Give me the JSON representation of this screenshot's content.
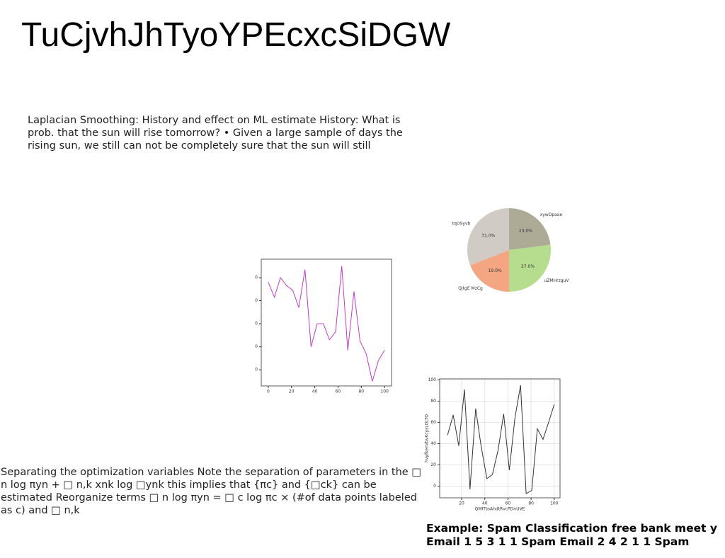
{
  "title": "TuCjvhJhTyoYPEcxcSiDGW",
  "paragraphs": [
    "Laplacian Smoothing: History and effect on ML estimate History: What is prob. that the sun will rise tomorrow? • Given a large sample of days the rising sun, we still can not be completely sure that the sun will still",
    "Separating the optimization variables Note the separation of parameters in the □ n log πyn + □ n,k xnk log □ynk this implies that {πc} and {□ck} can be estimated Reorganize terms □ n log πyn = □ c log πc × (#of data points labeled as c) and □ n,k",
    "Example: Spam Classification free bank meet y Email 1 5 3 1 1 Spam Email 2 4 2 1 1 Spam"
  ],
  "chart_data": [
    {
      "type": "line",
      "x": [
        0,
        5.3,
        10.5,
        15.8,
        21.1,
        26.3,
        31.6,
        36.8,
        42.1,
        47.4,
        52.6,
        57.9,
        63.2,
        68.4,
        73.7,
        78.9,
        84.2,
        89.5,
        94.7,
        100
      ],
      "series": [
        {
          "color": "#c03cc8",
          "values": [
            76,
            63,
            80,
            73,
            69,
            54,
            87,
            20,
            40,
            40,
            26,
            33,
            90,
            17,
            68,
            25,
            14,
            -10,
            8,
            17
          ]
        }
      ],
      "xlim": [
        -6,
        106
      ],
      "ylim": [
        -14,
        96
      ],
      "xticks": [
        0,
        20,
        40,
        60,
        80,
        100
      ],
      "yticks": [
        0,
        20,
        40,
        60,
        80
      ],
      "grid": false
    },
    {
      "type": "pie",
      "categories": [
        "xywDpaae",
        "uZMHrzguV",
        "QjtgE MzCg",
        "tqOSyvb"
      ],
      "values": [
        23,
        27,
        19,
        31
      ],
      "value_labels": [
        "23.0%",
        "27.0%",
        "19.0%",
        "31.0%"
      ],
      "colors": [
        "#adab96",
        "#b6dc8e",
        "#f4a582",
        "#d0cbc4"
      ]
    },
    {
      "type": "line",
      "xlabel": "QMITtoAhdtRvcPDnUVE",
      "ylabel": "hvyfkenVbvKcysLOLTO",
      "x": [
        7.8,
        12.7,
        17.5,
        22.4,
        27.2,
        32.1,
        36.9,
        41.8,
        46.6,
        51.5,
        56.3,
        61.2,
        66,
        70.9,
        75.7,
        80.6,
        85.4,
        90.3,
        95.1,
        100
      ],
      "series": [
        {
          "color": "#333333",
          "values": [
            48,
            67,
            38,
            91,
            -3,
            73,
            37,
            7,
            11,
            34,
            68,
            15,
            64,
            95,
            -7,
            -4,
            54,
            44,
            60,
            77
          ]
        }
      ],
      "xlim": [
        1,
        105
      ],
      "ylim": [
        -11,
        101
      ],
      "xticks": [
        20,
        40,
        60,
        80,
        100
      ],
      "yticks": [
        0,
        20,
        40,
        60,
        80,
        100
      ],
      "grid": true
    }
  ]
}
